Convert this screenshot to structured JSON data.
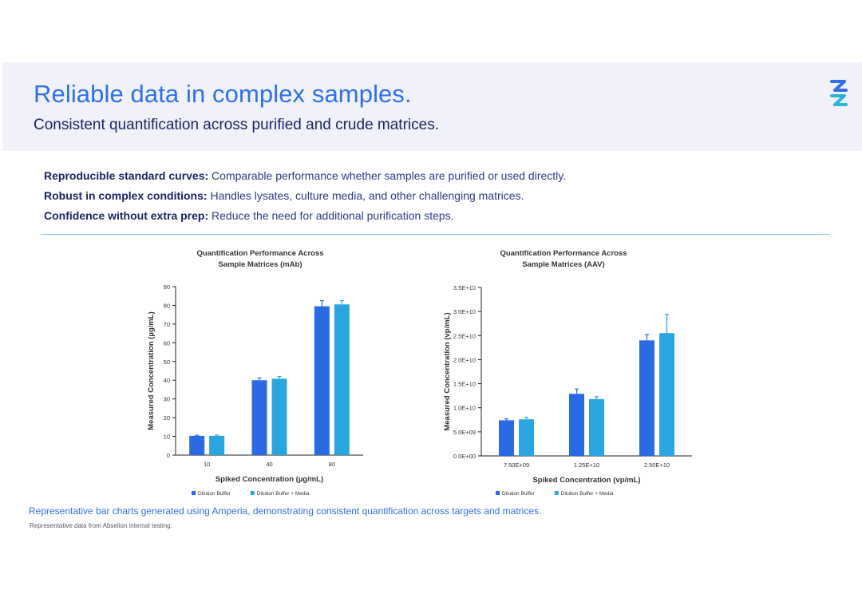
{
  "header": {
    "headline": "Reliable data in complex samples.",
    "subhead": "Consistent quantification across purified and crude matrices.",
    "logo_icon": "brand-logo-icon"
  },
  "bullets": [
    {
      "lead": "Reproducible standard curves:",
      "text": " Comparable performance whether samples are purified or used directly."
    },
    {
      "lead": "Robust in complex conditions:",
      "text": " Handles lysates, culture media, and other challenging matrices."
    },
    {
      "lead": "Confidence without extra prep:",
      "text": " Reduce the need for additional purification steps."
    }
  ],
  "chart_data": [
    {
      "type": "bar",
      "title": [
        "Quantification Performance Across",
        "Sample Matrices (mAb)"
      ],
      "xlabel": "Spiked Concentration (µg/mL)",
      "ylabel": "Measured Concentration (µg/mL)",
      "categories": [
        "10",
        "40",
        "80"
      ],
      "ylim": [
        0,
        90
      ],
      "yticks": [
        0,
        10,
        20,
        30,
        40,
        50,
        60,
        70,
        80,
        90
      ],
      "ytick_labels": [
        "0",
        "10",
        "20",
        "30",
        "40",
        "50",
        "60",
        "70",
        "80",
        "90"
      ],
      "series": [
        {
          "name": "Dilution Buffer",
          "color": "#2a6be4",
          "values": [
            10.3,
            40.0,
            79.5
          ],
          "errors": [
            0.3,
            1.2,
            3.0
          ]
        },
        {
          "name": "Dilution Buffer + Media",
          "color": "#29a6df",
          "values": [
            10.3,
            40.8,
            80.5
          ],
          "errors": [
            0.4,
            1.2,
            2.0
          ]
        }
      ],
      "legend": "bottom"
    },
    {
      "type": "bar",
      "title": [
        "Quantification Performance Across",
        "Sample Matrices (AAV)"
      ],
      "xlabel": "Spiked Concentration (vp/mL)",
      "ylabel": "Measured Concentration (vp/mL)",
      "categories": [
        "7.50E+09",
        "1.25E+10",
        "2.50E+10"
      ],
      "ylim": [
        0,
        35000000000
      ],
      "yticks": [
        0,
        5000000000,
        10000000000,
        15000000000,
        20000000000,
        25000000000,
        30000000000,
        35000000000
      ],
      "ytick_labels": [
        "0.0E+00",
        "5.0E+09",
        "1.0E+10",
        "1.5E+10",
        "2.0E+10",
        "2.5E+10",
        "3.0E+10",
        "3.5E+10"
      ],
      "series": [
        {
          "name": "Dilution Buffer",
          "color": "#2a6be4",
          "values": [
            7400000000,
            12900000000,
            24000000000
          ],
          "errors": [
            300000000,
            1000000000,
            1200000000
          ]
        },
        {
          "name": "Dilution Buffer + Media",
          "color": "#29a6df",
          "values": [
            7600000000,
            11800000000,
            25500000000
          ],
          "errors": [
            400000000,
            500000000,
            3900000000
          ]
        }
      ],
      "legend": "bottom"
    }
  ],
  "footer": {
    "caption": "Representative bar charts generated using Amperia, demonstrating consistent quantification across targets and matrices.",
    "footnote": "Representative data from Abselion internal testing."
  }
}
